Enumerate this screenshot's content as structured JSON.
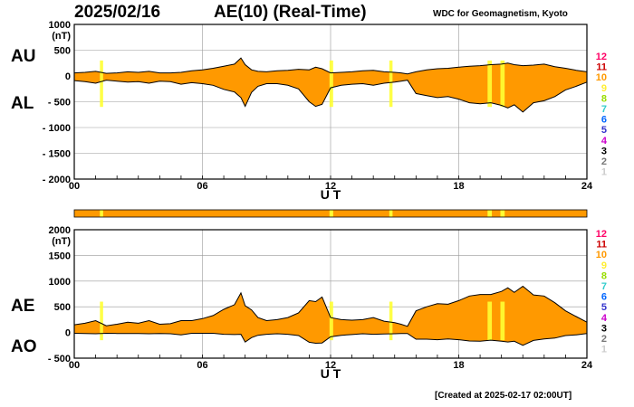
{
  "header": {
    "date": "2025/02/16",
    "title": "AE(10) (Real-Time)",
    "institution": "WDC for Geomagnetism, Kyoto"
  },
  "footer": {
    "created": "[Created at 2025-02-17 02:00UT]"
  },
  "colors": {
    "fill": "#ff9900",
    "highlight": "#ffff33",
    "grid": "#999999"
  },
  "chart_data": [
    {
      "type": "area",
      "labels": {
        "upper": "AU",
        "lower": "AL"
      },
      "unit": "(nT)",
      "ylim": [
        -2000,
        1000
      ],
      "yticks": [
        {
          "value": 1000,
          "label": "1000"
        },
        {
          "value": 500,
          "label": "500"
        },
        {
          "value": 0,
          "label": "0"
        },
        {
          "value": -500,
          "label": "- 500"
        },
        {
          "value": -1000,
          "label": "- 1000"
        },
        {
          "value": -1500,
          "label": "- 1500"
        },
        {
          "value": -2000,
          "label": "- 2000"
        }
      ],
      "xlim": [
        0,
        24
      ],
      "xticks": [
        {
          "value": 0,
          "label": "00"
        },
        {
          "value": 6,
          "label": "06"
        },
        {
          "value": 12,
          "label": "12"
        },
        {
          "value": 18,
          "label": "18"
        },
        {
          "value": 24,
          "label": "24"
        }
      ],
      "xlabel": "U T",
      "grid": true,
      "x": [
        0,
        0.5,
        1,
        1.5,
        2,
        2.5,
        3,
        3.5,
        4,
        4.5,
        5,
        5.5,
        6,
        6.5,
        7,
        7.5,
        7.8,
        8,
        8.3,
        8.6,
        9,
        9.5,
        10,
        10.5,
        11,
        11.3,
        11.6,
        12,
        12.5,
        13,
        13.5,
        14,
        14.5,
        15,
        15.3,
        15.6,
        16,
        16.5,
        17,
        17.5,
        18,
        18.5,
        19,
        19.5,
        20,
        20.3,
        20.6,
        21,
        21.5,
        22,
        22.5,
        23,
        23.5,
        24
      ],
      "series": [
        {
          "name": "AU",
          "values": [
            60,
            70,
            90,
            50,
            60,
            80,
            70,
            90,
            60,
            60,
            70,
            100,
            120,
            150,
            190,
            230,
            350,
            220,
            120,
            90,
            80,
            100,
            110,
            130,
            120,
            170,
            140,
            60,
            70,
            80,
            100,
            110,
            80,
            70,
            60,
            40,
            80,
            120,
            140,
            150,
            170,
            190,
            200,
            220,
            230,
            250,
            220,
            200,
            210,
            230,
            180,
            150,
            110,
            80
          ]
        },
        {
          "name": "AL",
          "values": [
            -90,
            -110,
            -140,
            -80,
            -100,
            -120,
            -110,
            -140,
            -100,
            -110,
            -160,
            -130,
            -150,
            -180,
            -260,
            -310,
            -420,
            -590,
            -320,
            -200,
            -150,
            -150,
            -180,
            -250,
            -500,
            -590,
            -550,
            -230,
            -180,
            -160,
            -150,
            -180,
            -140,
            -120,
            -100,
            -80,
            -340,
            -380,
            -420,
            -400,
            -450,
            -520,
            -540,
            -520,
            -570,
            -620,
            -560,
            -700,
            -520,
            -480,
            -400,
            -270,
            -200,
            -120
          ]
        }
      ]
    },
    {
      "type": "area",
      "labels": {
        "upper": "AE",
        "lower": "AO"
      },
      "unit": "(nT)",
      "ylim": [
        -500,
        2000
      ],
      "yticks": [
        {
          "value": 2000,
          "label": "2000"
        },
        {
          "value": 1500,
          "label": "1500"
        },
        {
          "value": 1000,
          "label": "1000"
        },
        {
          "value": 500,
          "label": "500"
        },
        {
          "value": 0,
          "label": "0"
        },
        {
          "value": -500,
          "label": "- 500"
        }
      ],
      "xlim": [
        0,
        24
      ],
      "xticks": [
        {
          "value": 0,
          "label": "00"
        },
        {
          "value": 6,
          "label": "06"
        },
        {
          "value": 12,
          "label": "12"
        },
        {
          "value": 18,
          "label": "18"
        },
        {
          "value": 24,
          "label": "24"
        }
      ],
      "xlabel": "U T",
      "grid": true,
      "x": [
        0,
        0.5,
        1,
        1.5,
        2,
        2.5,
        3,
        3.5,
        4,
        4.5,
        5,
        5.5,
        6,
        6.5,
        7,
        7.5,
        7.8,
        8,
        8.3,
        8.6,
        9,
        9.5,
        10,
        10.5,
        11,
        11.3,
        11.6,
        12,
        12.5,
        13,
        13.5,
        14,
        14.5,
        15,
        15.3,
        15.6,
        16,
        16.5,
        17,
        17.5,
        18,
        18.5,
        19,
        19.5,
        20,
        20.3,
        20.6,
        21,
        21.5,
        22,
        22.5,
        23,
        23.5,
        24
      ],
      "series": [
        {
          "name": "AE",
          "values": [
            150,
            180,
            230,
            130,
            160,
            200,
            180,
            230,
            160,
            170,
            230,
            230,
            270,
            330,
            450,
            540,
            770,
            520,
            440,
            290,
            230,
            250,
            290,
            380,
            620,
            600,
            690,
            290,
            250,
            240,
            250,
            290,
            220,
            190,
            160,
            120,
            420,
            500,
            560,
            550,
            620,
            710,
            740,
            740,
            800,
            870,
            780,
            900,
            730,
            710,
            580,
            420,
            310,
            200
          ]
        },
        {
          "name": "AO",
          "values": [
            -15,
            -20,
            -25,
            -15,
            -20,
            -20,
            -20,
            -25,
            -20,
            -25,
            -45,
            -15,
            -15,
            -15,
            -35,
            -40,
            -35,
            -185,
            -100,
            -55,
            -35,
            -25,
            -35,
            -60,
            -190,
            -210,
            -205,
            -85,
            -55,
            -40,
            -25,
            -35,
            -30,
            -25,
            -20,
            -20,
            -130,
            -130,
            -140,
            -125,
            -140,
            -165,
            -170,
            -150,
            -170,
            -185,
            -170,
            -250,
            -155,
            -125,
            -110,
            -60,
            -45,
            -20
          ]
        }
      ]
    }
  ],
  "highlights": [
    {
      "from": 1.2,
      "to": 1.35
    },
    {
      "from": 11.95,
      "to": 12.12
    },
    {
      "from": 14.75,
      "to": 14.9
    },
    {
      "from": 19.35,
      "to": 19.55
    },
    {
      "from": 19.95,
      "to": 20.15
    }
  ],
  "station_legend": [
    {
      "label": "12",
      "color": "#ff0066"
    },
    {
      "label": "11",
      "color": "#cc0000"
    },
    {
      "label": "10",
      "color": "#ff9900"
    },
    {
      "label": "9",
      "color": "#ffee33"
    },
    {
      "label": "8",
      "color": "#99dd00"
    },
    {
      "label": "7",
      "color": "#33cccc"
    },
    {
      "label": "6",
      "color": "#0066ff"
    },
    {
      "label": "5",
      "color": "#3333cc"
    },
    {
      "label": "4",
      "color": "#cc00cc"
    },
    {
      "label": "3",
      "color": "#000000"
    },
    {
      "label": "2",
      "color": "#777777"
    },
    {
      "label": "1",
      "color": "#cccccc"
    }
  ]
}
